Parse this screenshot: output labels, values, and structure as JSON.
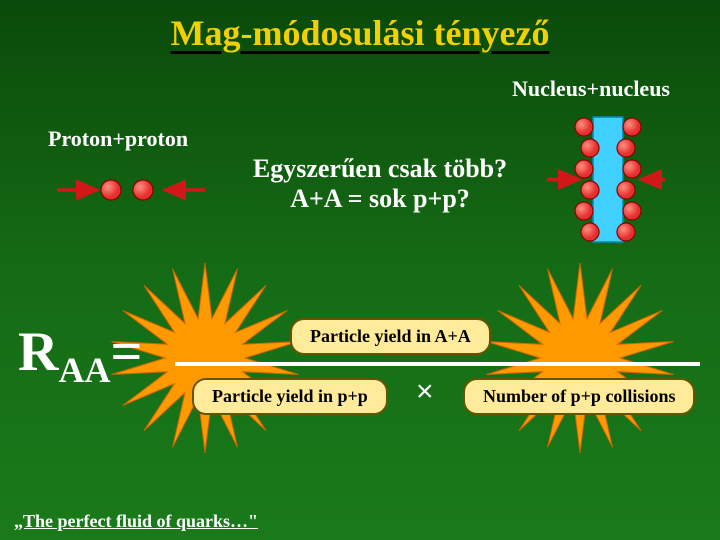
{
  "title": "Mag-módosulási tényező",
  "labels": {
    "nucleus": "Nucleus+nucleus",
    "proton": "Proton+proton"
  },
  "question": {
    "line1": "Egyszerűen csak több?",
    "line2": "A+A = sok p+p?"
  },
  "formula": {
    "symbol": "R",
    "subscript": "AA",
    "equals": "=",
    "numerator": "Particle yield in A+A",
    "denom_left": "Particle yield in p+p",
    "multiply": "×",
    "denom_right": "Number of p+p collisions"
  },
  "footer": "„The perfect fluid of quarks…\"",
  "colors": {
    "accent": "#f0d000",
    "proton": "#e63030",
    "proton_stroke": "#8b0000",
    "arrow": "#d01818",
    "qgp": "#40d0ff",
    "star": "#ff9900",
    "star_stroke": "#cc6600",
    "pill_bg": "#ffeb99",
    "pill_border": "#665500"
  },
  "pp_diagram": {
    "arrow_len": 40,
    "gap": 32,
    "r": 10
  },
  "nn_diagram": {
    "width": 50,
    "height": 125,
    "r": 9,
    "n_per_side": 6,
    "arrow_len": 32
  },
  "starburst": {
    "spikes": 18,
    "outer": 95,
    "inner": 40
  }
}
